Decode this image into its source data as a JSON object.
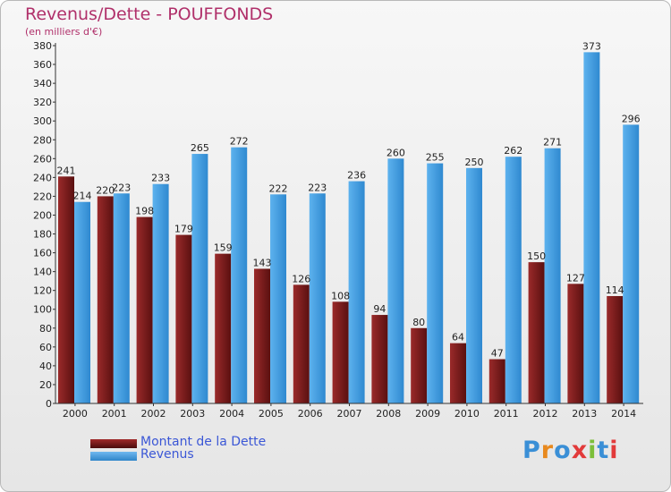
{
  "title": "Revenus/Dette - POUFFONDS",
  "subtitle": "(en milliers d'€)",
  "chart_data": {
    "type": "bar",
    "title": "Revenus/Dette - POUFFONDS",
    "subtitle": "(en milliers d'€)",
    "categories": [
      "2000",
      "2001",
      "2002",
      "2003",
      "2004",
      "2005",
      "2006",
      "2007",
      "2008",
      "2009",
      "2010",
      "2011",
      "2012",
      "2013",
      "2014"
    ],
    "series": [
      {
        "name": "Montant de la Dette",
        "color": "#8b1f1f",
        "values": [
          241,
          220,
          198,
          179,
          159,
          143,
          126,
          108,
          94,
          80,
          64,
          47,
          150,
          127,
          114
        ]
      },
      {
        "name": "Revenus",
        "color": "#3f9de3",
        "values": [
          214,
          223,
          233,
          265,
          272,
          222,
          223,
          236,
          260,
          255,
          250,
          262,
          271,
          373,
          296
        ]
      }
    ],
    "ylim": [
      0,
      380
    ],
    "ytick_step": 20,
    "grid": false,
    "legend_position": "bottom-left"
  },
  "legend": [
    {
      "label": "Montant de la Dette",
      "color": "#8b1f1f"
    },
    {
      "label": "Revenus",
      "color": "#3f9de3"
    }
  ],
  "logo": {
    "letters": [
      "P",
      "r",
      "o",
      "x",
      "i",
      "t",
      "i"
    ],
    "colors": [
      "#3a8fd6",
      "#e8891e",
      "#3a8fd6",
      "#e23a3a",
      "#7cbf3a",
      "#3a8fd6",
      "#e23a3a"
    ]
  }
}
